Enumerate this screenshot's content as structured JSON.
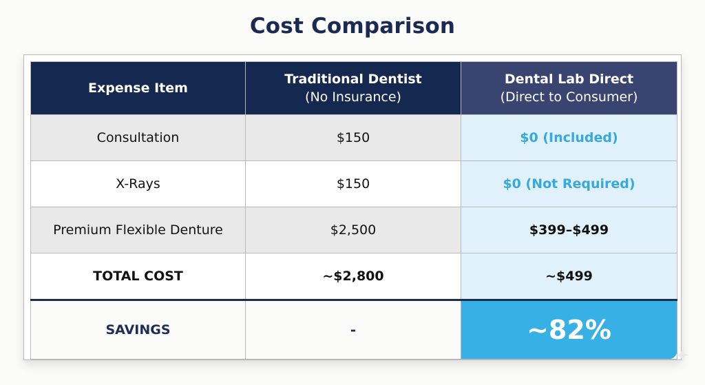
{
  "title": "Cost Comparison",
  "table": {
    "headers": [
      {
        "main": "Expense Item",
        "sub": ""
      },
      {
        "main": "Traditional Dentist",
        "sub": "(No Insurance)"
      },
      {
        "main": "Dental Lab Direct",
        "sub": "(Direct to Consumer)"
      }
    ],
    "rows": [
      {
        "item": "Consultation",
        "traditional": "$150",
        "direct": "$0 (Included)"
      },
      {
        "item": "X-Rays",
        "traditional": "$150",
        "direct": "$0 (Not Required)"
      },
      {
        "item": "Premium Flexible Denture",
        "traditional": "$2,500",
        "direct": "$399–$499"
      },
      {
        "item": "TOTAL COST",
        "traditional": "~$2,800",
        "direct": "~$499"
      }
    ],
    "savings": {
      "label": "SAVINGS",
      "traditional": "-",
      "direct": "~82%"
    }
  },
  "colors": {
    "title": "#1b2a52",
    "header_dark": "#15284f",
    "header_direct": "#3a4470",
    "direct_column_bg": "#e1f1fb",
    "accent_blue": "#36a9df",
    "savings_highlight": "#37b0e6",
    "savings_label": "#1e2e5a"
  },
  "decor": {
    "sparkle_icon": "✦"
  }
}
